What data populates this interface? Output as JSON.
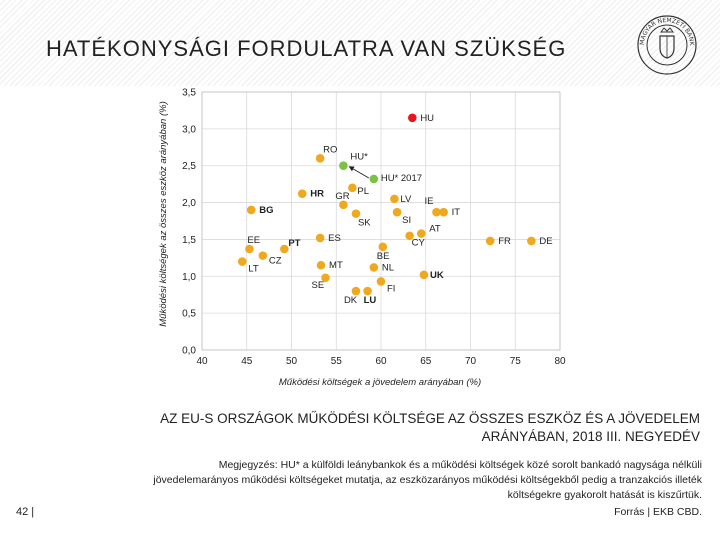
{
  "header": {
    "title": "HATÉKONYSÁGI FORDULATRA VAN SZÜKSÉG",
    "logo_text": "MAGYAR NEMZETI BANK"
  },
  "chart_data": {
    "type": "scatter",
    "xlabel": "Működési költségek a jövedelem arányában (%)",
    "ylabel": "Működési költségek az összes eszköz arányában (%)",
    "xlim": [
      40,
      80
    ],
    "ylim": [
      0,
      3.5
    ],
    "xticks": [
      "40",
      "45",
      "50",
      "55",
      "60",
      "65",
      "70",
      "75",
      "80"
    ],
    "yticks": [
      "0,0",
      "0,5",
      "1,0",
      "1,5",
      "2,0",
      "2,5",
      "3,0",
      "3,5"
    ],
    "grid": true,
    "colors": {
      "default": "#f0a91f",
      "hu": "#e8151c",
      "hu_star": "#7dc243"
    },
    "points": [
      {
        "label": "HU",
        "x": 63.5,
        "y": 3.15,
        "kind": "hu"
      },
      {
        "label": "HU*",
        "x": 55.8,
        "y": 2.5,
        "kind": "hu_star"
      },
      {
        "label": "HU* 2017",
        "x": 59.2,
        "y": 2.32,
        "kind": "hu_star"
      },
      {
        "label": "RO",
        "x": 53.2,
        "y": 2.6,
        "kind": "default"
      },
      {
        "label": "PL",
        "x": 56.8,
        "y": 2.2,
        "kind": "default"
      },
      {
        "label": "HR",
        "x": 51.2,
        "y": 2.12,
        "kind": "default"
      },
      {
        "label": "GR",
        "x": 55.8,
        "y": 1.97,
        "kind": "default"
      },
      {
        "label": "SK",
        "x": 57.2,
        "y": 1.85,
        "kind": "default"
      },
      {
        "label": "LV",
        "x": 61.5,
        "y": 2.05,
        "kind": "default"
      },
      {
        "label": "SI",
        "x": 61.8,
        "y": 1.87,
        "kind": "default"
      },
      {
        "label": "IE",
        "x": 66.2,
        "y": 1.87,
        "kind": "default"
      },
      {
        "label": "IT",
        "x": 67.0,
        "y": 1.87,
        "kind": "default"
      },
      {
        "label": "BG",
        "x": 45.5,
        "y": 1.9,
        "kind": "default"
      },
      {
        "label": "AT",
        "x": 64.5,
        "y": 1.58,
        "kind": "default"
      },
      {
        "label": "ES",
        "x": 53.2,
        "y": 1.52,
        "kind": "default"
      },
      {
        "label": "CY",
        "x": 63.2,
        "y": 1.55,
        "kind": "default"
      },
      {
        "label": "BE",
        "x": 60.2,
        "y": 1.4,
        "kind": "default"
      },
      {
        "label": "FR",
        "x": 72.2,
        "y": 1.48,
        "kind": "default"
      },
      {
        "label": "DE",
        "x": 76.8,
        "y": 1.48,
        "kind": "default"
      },
      {
        "label": "EE",
        "x": 45.3,
        "y": 1.37,
        "kind": "default"
      },
      {
        "label": "PT",
        "x": 49.2,
        "y": 1.37,
        "kind": "default"
      },
      {
        "label": "CZ",
        "x": 46.8,
        "y": 1.28,
        "kind": "default"
      },
      {
        "label": "LT",
        "x": 44.5,
        "y": 1.2,
        "kind": "default"
      },
      {
        "label": "MT",
        "x": 53.3,
        "y": 1.15,
        "kind": "default"
      },
      {
        "label": "NL",
        "x": 59.2,
        "y": 1.12,
        "kind": "default"
      },
      {
        "label": "SE",
        "x": 53.8,
        "y": 0.98,
        "kind": "default"
      },
      {
        "label": "UK",
        "x": 64.8,
        "y": 1.02,
        "kind": "default"
      },
      {
        "label": "FI",
        "x": 60.0,
        "y": 0.93,
        "kind": "default"
      },
      {
        "label": "DK",
        "x": 57.2,
        "y": 0.8,
        "kind": "default"
      },
      {
        "label": "LU",
        "x": 58.5,
        "y": 0.8,
        "kind": "default"
      }
    ]
  },
  "caption": {
    "line1": "AZ EU-S ORSZÁGOK MŰKÖDÉSI KÖLTSÉGE AZ ÖSSZES ESZKÖZ ÉS A JÖVEDELEM",
    "line2": "ARÁNYÁBAN, 2018 III. NEGYEDÉV"
  },
  "note": {
    "line1": "Megjegyzés: HU* a külföldi leánybankok és a működési költségek közé sorolt bankadó nagysága nélküli",
    "line2": "jövedelemarányos működési költségeket mutatja, az eszközarányos működési költségekből pedig a tranzakciós illeték",
    "line3": "költségekre gyakorolt hatását is kiszűrtük."
  },
  "source": "Forrás | EKB CBD.",
  "page_number": "42 |"
}
